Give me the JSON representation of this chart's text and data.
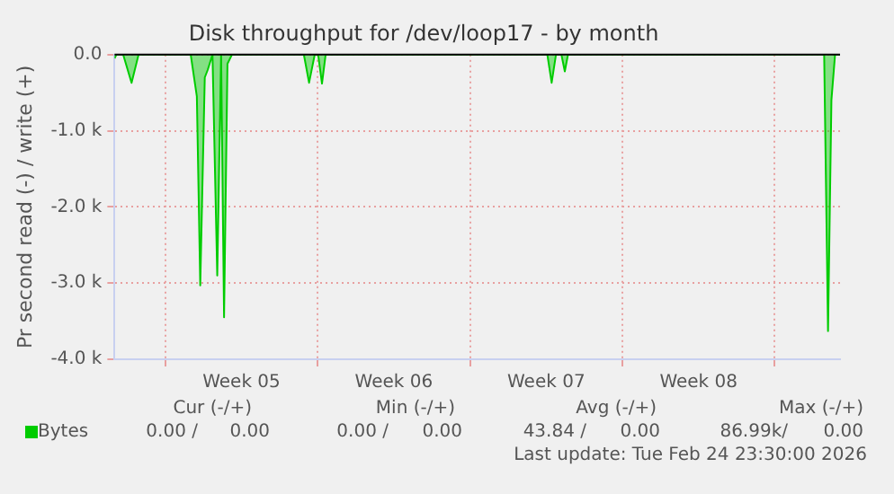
{
  "chart_data": {
    "type": "area",
    "title": "Disk throughput for /dev/loop17 - by month",
    "ylabel": "Pr second read (-) / write (+)",
    "x": [
      "2026-01-23T16:00",
      "2026-01-23T18:00",
      "2026-01-24T01:30",
      "2026-01-24T10:45",
      "2026-01-24T18:30",
      "2026-01-27T04:00",
      "2026-01-27T10:45",
      "2026-01-27T14:30",
      "2026-01-27T19:30",
      "2026-01-27T22:45",
      "2026-01-28T04:00",
      "2026-01-28T09:15",
      "2026-01-28T13:30",
      "2026-01-28T16:45",
      "2026-01-28T20:30",
      "2026-01-29T01:30",
      "2026-02-01T08:45",
      "2026-02-01T14:30",
      "2026-02-01T20:45",
      "2026-02-02T00:30",
      "2026-02-02T04:45",
      "2026-02-02T08:45",
      "2026-02-12T13:15",
      "2026-02-12T18:00",
      "2026-02-12T22:45",
      "2026-02-13T04:45",
      "2026-02-13T08:30",
      "2026-02-13T12:00",
      "2026-02-25T06:30",
      "2026-02-25T10:45",
      "2026-02-25T14:30",
      "2026-02-25T18:30",
      "2026-02-26T00:00"
    ],
    "series": [
      {
        "name": "Bytes",
        "color": "#00cc00",
        "values": [
          -50,
          0,
          0,
          -370,
          0,
          0,
          -550,
          -3030,
          -300,
          -200,
          0,
          -2900,
          0,
          -3450,
          -120,
          0,
          0,
          -370,
          0,
          0,
          -380,
          0,
          0,
          -370,
          0,
          0,
          -220,
          0,
          0,
          -3630,
          -600,
          0,
          0
        ]
      }
    ],
    "xlim": [
      "2026-01-23T16:00",
      "2026-02-26T00:00"
    ],
    "xticks": [
      {
        "value": "2026-01-26",
        "label": null
      },
      {
        "value": "2026-01-29T12:00",
        "label": "Week 05"
      },
      {
        "value": "2026-02-02",
        "label": null
      },
      {
        "value": "2026-02-05T12:00",
        "label": "Week 06"
      },
      {
        "value": "2026-02-09",
        "label": null
      },
      {
        "value": "2026-02-12T12:00",
        "label": "Week 07"
      },
      {
        "value": "2026-02-16",
        "label": null
      },
      {
        "value": "2026-02-19T12:00",
        "label": "Week 08"
      },
      {
        "value": "2026-02-23",
        "label": null
      }
    ],
    "ylim": [
      -4000,
      0
    ],
    "yticks": [
      {
        "value": 0,
        "label": "0.0"
      },
      {
        "value": -1000,
        "label": "-1.0 k"
      },
      {
        "value": -2000,
        "label": "-2.0 k"
      },
      {
        "value": -3000,
        "label": "-3.0 k"
      },
      {
        "value": -4000,
        "label": "-4.0 k"
      }
    ],
    "grid": true,
    "legend": "bottom left",
    "marker": "none",
    "annotations": [
      "Cur (-/+)",
      "Min (-/+)",
      "Avg (-/+)",
      "Max (-/+)",
      "0.00 /",
      "0.00",
      "0.00 /",
      "0.00",
      "43.84 /",
      "0.00",
      "86.99k/",
      "0.00",
      "Last update: Tue Feb 24 23:30:00 2026"
    ]
  }
}
